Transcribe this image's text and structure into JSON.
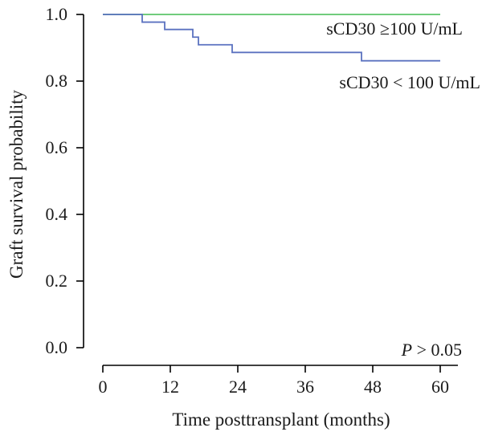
{
  "chart_data": {
    "type": "line",
    "xlabel": "Time posttransplant (months)",
    "ylabel": "Graft survival probability",
    "xlim": [
      0,
      60
    ],
    "ylim": [
      0,
      1
    ],
    "x_ticks": [
      "0",
      "12",
      "24",
      "36",
      "48",
      "60"
    ],
    "y_ticks": [
      "0.0",
      "0.2",
      "0.4",
      "0.6",
      "0.8",
      "1.0"
    ],
    "grid": false,
    "series": [
      {
        "name": "sCD30 ≥100 U/mL",
        "color": "#5cc46a",
        "step": true,
        "x": [
          0,
          60
        ],
        "y": [
          1.0,
          1.0
        ]
      },
      {
        "name": "sCD30 < 100 U/mL",
        "color": "#5b72c0",
        "step": true,
        "x": [
          0,
          7,
          11,
          16,
          17,
          23,
          46,
          60
        ],
        "y": [
          1.0,
          0.977,
          0.955,
          0.932,
          0.909,
          0.886,
          0.861,
          0.861
        ]
      }
    ],
    "annotation": {
      "p_symbol": "P",
      "p_rest": " > 0.05"
    }
  }
}
